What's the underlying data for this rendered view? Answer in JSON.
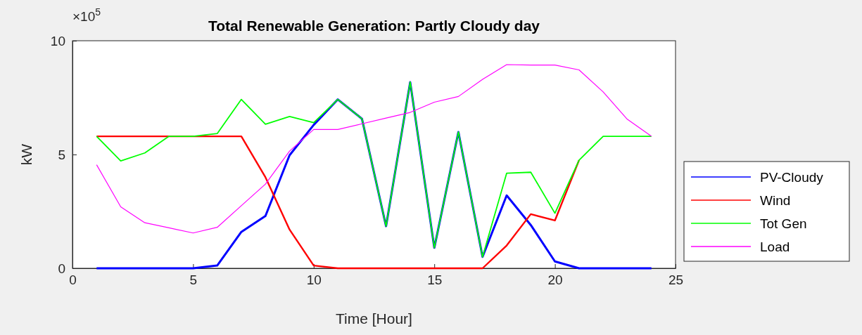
{
  "chart_data": {
    "type": "line",
    "title": "Total Renewable Generation: Partly Cloudy day",
    "xlabel": "Time [Hour]",
    "ylabel": "kW",
    "annotations": [
      "×10$^{5}$"
    ],
    "x": [
      1,
      2,
      3,
      4,
      5,
      6,
      7,
      8,
      9,
      10,
      11,
      12,
      13,
      14,
      15,
      16,
      17,
      18,
      19,
      20,
      21,
      22,
      23,
      24
    ],
    "xlim": [
      0,
      25
    ],
    "xticks": [
      0,
      5,
      10,
      15,
      20,
      25
    ],
    "ylim": [
      0,
      10
    ],
    "yticks": [
      0,
      5,
      10
    ],
    "legend": "right",
    "grid": false,
    "marker": "none",
    "line_style": "solid",
    "series": [
      {
        "name": "PV-Cloudy",
        "color": "#0000ff",
        "values": [
          0,
          0,
          0,
          0,
          0,
          0.12,
          1.6,
          2.3,
          4.97,
          6.3,
          7.42,
          6.57,
          1.85,
          8.18,
          0.9,
          5.99,
          0.5,
          3.2,
          1.9,
          0.3,
          0,
          0,
          0,
          0
        ]
      },
      {
        "name": "Wind",
        "color": "#ff0000",
        "values": [
          5.8,
          5.8,
          5.8,
          5.8,
          5.8,
          5.8,
          5.8,
          4.0,
          1.7,
          0.12,
          0,
          0,
          0,
          0,
          0,
          0,
          0,
          1.0,
          2.38,
          2.1,
          4.75,
          null,
          null,
          null
        ]
      },
      {
        "name": "Tot Gen",
        "color": "#00ff00",
        "values": [
          5.8,
          4.72,
          5.07,
          5.8,
          5.8,
          5.92,
          7.42,
          6.33,
          6.67,
          6.4,
          7.42,
          6.57,
          1.85,
          8.18,
          0.9,
          5.99,
          0.5,
          4.18,
          4.22,
          2.42,
          4.75,
          5.8,
          5.8,
          5.8
        ]
      },
      {
        "name": "Load",
        "color": "#ff00ff",
        "values": [
          4.55,
          2.7,
          2.0,
          1.78,
          1.55,
          1.8,
          2.75,
          3.7,
          5.15,
          6.1,
          6.1,
          6.35,
          6.6,
          6.85,
          7.3,
          7.55,
          8.3,
          8.95,
          8.93,
          8.93,
          8.72,
          7.75,
          6.55,
          5.8
        ]
      }
    ]
  }
}
